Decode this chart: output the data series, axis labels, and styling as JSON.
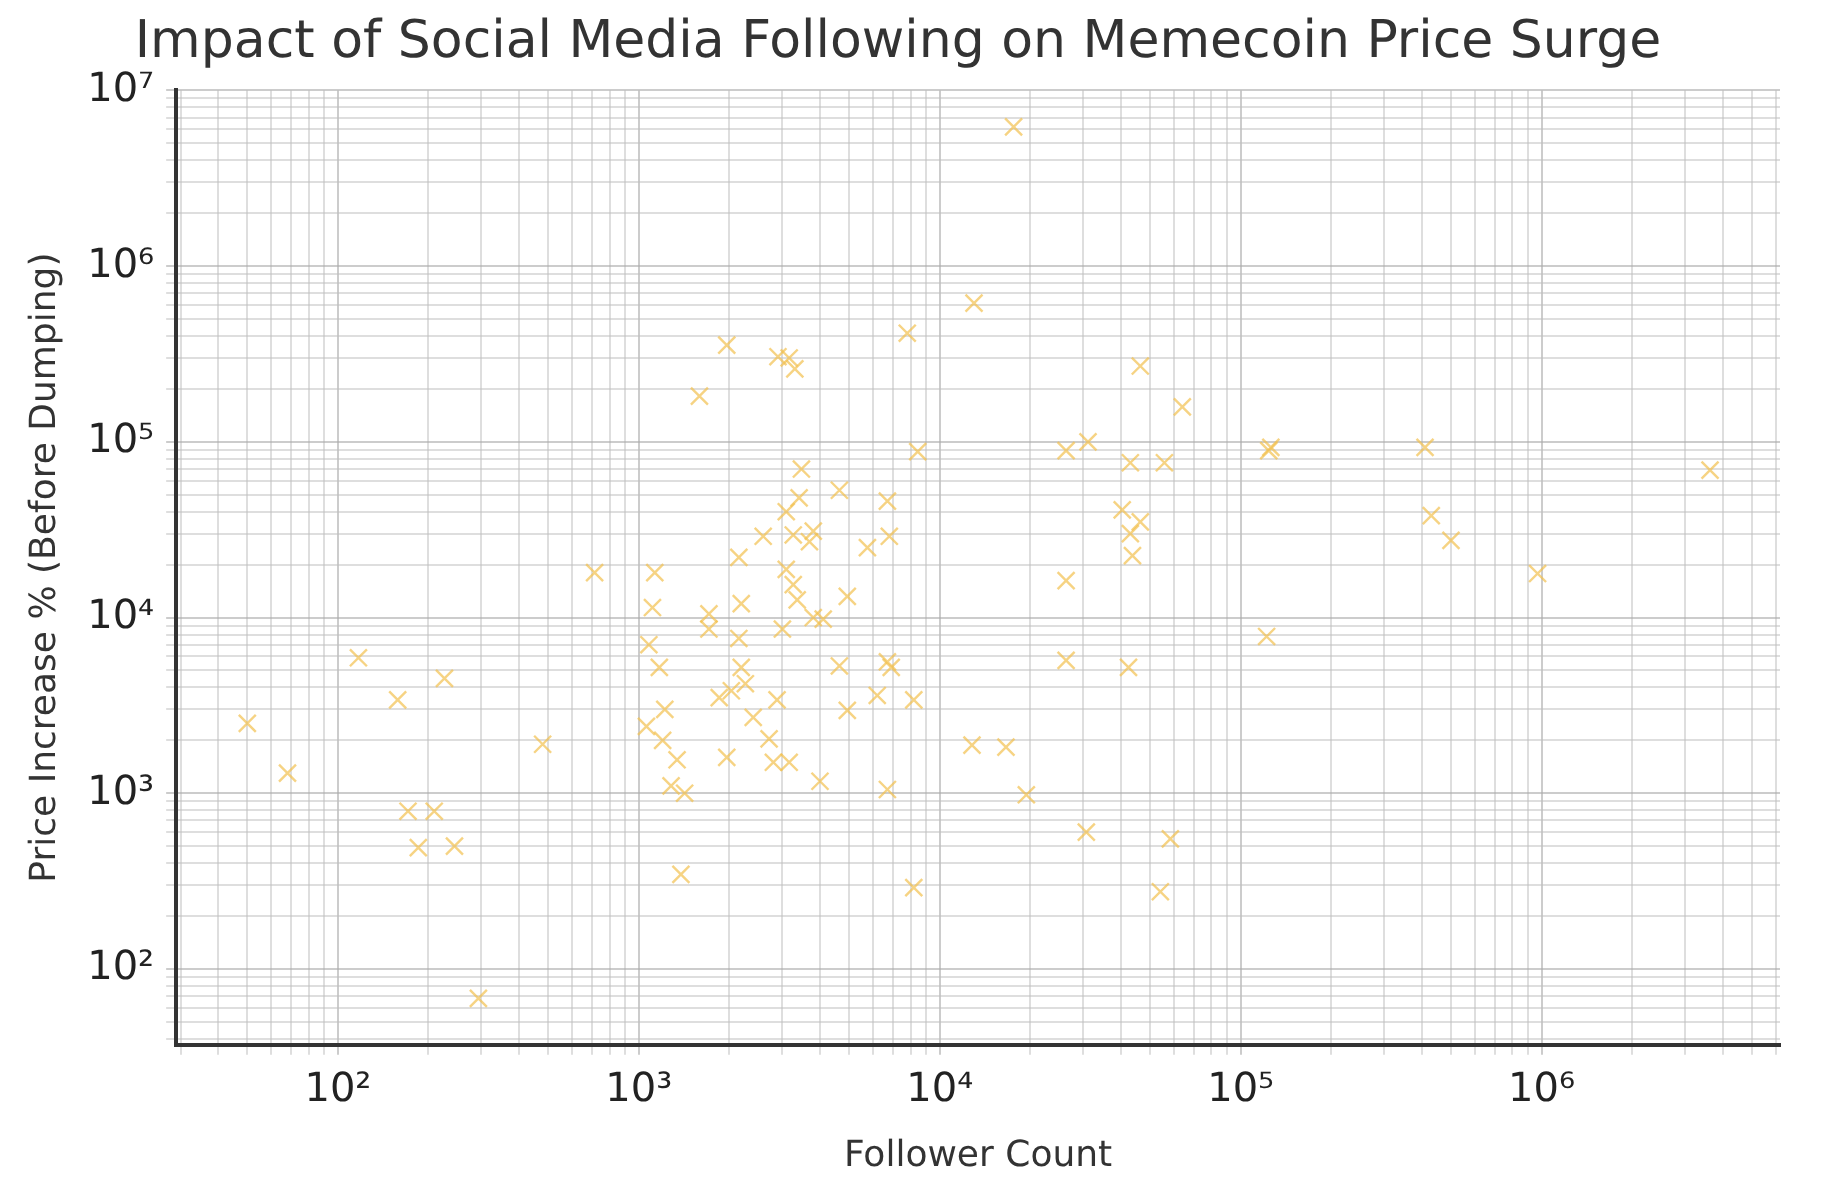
{
  "chart_data": {
    "type": "scatter",
    "title": "Impact of Social Media Following on Memecoin Price Surge",
    "xlabel": "Follower Count",
    "ylabel": "Price Increase % (Before Dumping)",
    "log": "xy",
    "grid": true,
    "marker": "cross",
    "legend": false,
    "xlim": [
      29,
      6200000
    ],
    "ylim": [
      37,
      10000000
    ],
    "xticks": [
      {
        "value": 30,
        "label": null
      },
      {
        "value": 40,
        "label": null
      },
      {
        "value": 50,
        "label": null
      },
      {
        "value": 60,
        "label": null
      },
      {
        "value": 70,
        "label": null
      },
      {
        "value": 80,
        "label": null
      },
      {
        "value": 90,
        "label": null
      },
      {
        "value": 100,
        "label": "10²"
      },
      {
        "value": 200,
        "label": null
      },
      {
        "value": 300,
        "label": null
      },
      {
        "value": 400,
        "label": null
      },
      {
        "value": 500,
        "label": null
      },
      {
        "value": 600,
        "label": null
      },
      {
        "value": 700,
        "label": null
      },
      {
        "value": 800,
        "label": null
      },
      {
        "value": 900,
        "label": null
      },
      {
        "value": 1000,
        "label": "10³"
      },
      {
        "value": 2000,
        "label": null
      },
      {
        "value": 3000,
        "label": null
      },
      {
        "value": 4000,
        "label": null
      },
      {
        "value": 5000,
        "label": null
      },
      {
        "value": 6000,
        "label": null
      },
      {
        "value": 7000,
        "label": null
      },
      {
        "value": 8000,
        "label": null
      },
      {
        "value": 9000,
        "label": null
      },
      {
        "value": 10000,
        "label": "10⁴"
      },
      {
        "value": 20000,
        "label": null
      },
      {
        "value": 30000,
        "label": null
      },
      {
        "value": 40000,
        "label": null
      },
      {
        "value": 50000,
        "label": null
      },
      {
        "value": 60000,
        "label": null
      },
      {
        "value": 70000,
        "label": null
      },
      {
        "value": 80000,
        "label": null
      },
      {
        "value": 90000,
        "label": null
      },
      {
        "value": 100000,
        "label": "10⁵"
      },
      {
        "value": 200000,
        "label": null
      },
      {
        "value": 300000,
        "label": null
      },
      {
        "value": 400000,
        "label": null
      },
      {
        "value": 500000,
        "label": null
      },
      {
        "value": 600000,
        "label": null
      },
      {
        "value": 700000,
        "label": null
      },
      {
        "value": 800000,
        "label": null
      },
      {
        "value": 900000,
        "label": null
      },
      {
        "value": 1000000,
        "label": "10⁶"
      },
      {
        "value": 2000000,
        "label": null
      },
      {
        "value": 3000000,
        "label": null
      },
      {
        "value": 4000000,
        "label": null
      },
      {
        "value": 5000000,
        "label": null
      },
      {
        "value": 6000000,
        "label": null
      }
    ],
    "yticks": [
      {
        "value": 40,
        "label": null
      },
      {
        "value": 50,
        "label": null
      },
      {
        "value": 60,
        "label": null
      },
      {
        "value": 70,
        "label": null
      },
      {
        "value": 80,
        "label": null
      },
      {
        "value": 90,
        "label": null
      },
      {
        "value": 100,
        "label": "10²"
      },
      {
        "value": 200,
        "label": null
      },
      {
        "value": 300,
        "label": null
      },
      {
        "value": 400,
        "label": null
      },
      {
        "value": 500,
        "label": null
      },
      {
        "value": 600,
        "label": null
      },
      {
        "value": 700,
        "label": null
      },
      {
        "value": 800,
        "label": null
      },
      {
        "value": 900,
        "label": null
      },
      {
        "value": 1000,
        "label": "10³"
      },
      {
        "value": 2000,
        "label": null
      },
      {
        "value": 3000,
        "label": null
      },
      {
        "value": 4000,
        "label": null
      },
      {
        "value": 5000,
        "label": null
      },
      {
        "value": 6000,
        "label": null
      },
      {
        "value": 7000,
        "label": null
      },
      {
        "value": 8000,
        "label": null
      },
      {
        "value": 9000,
        "label": null
      },
      {
        "value": 10000,
        "label": "10⁴"
      },
      {
        "value": 20000,
        "label": null
      },
      {
        "value": 30000,
        "label": null
      },
      {
        "value": 40000,
        "label": null
      },
      {
        "value": 50000,
        "label": null
      },
      {
        "value": 60000,
        "label": null
      },
      {
        "value": 70000,
        "label": null
      },
      {
        "value": 80000,
        "label": null
      },
      {
        "value": 90000,
        "label": null
      },
      {
        "value": 100000,
        "label": "10⁵"
      },
      {
        "value": 200000,
        "label": null
      },
      {
        "value": 300000,
        "label": null
      },
      {
        "value": 400000,
        "label": null
      },
      {
        "value": 500000,
        "label": null
      },
      {
        "value": 600000,
        "label": null
      },
      {
        "value": 700000,
        "label": null
      },
      {
        "value": 800000,
        "label": null
      },
      {
        "value": 900000,
        "label": null
      },
      {
        "value": 1000000,
        "label": "10⁶"
      },
      {
        "value": 2000000,
        "label": null
      },
      {
        "value": 3000000,
        "label": null
      },
      {
        "value": 4000000,
        "label": null
      },
      {
        "value": 5000000,
        "label": null
      },
      {
        "value": 6000000,
        "label": null
      },
      {
        "value": 7000000,
        "label": null
      },
      {
        "value": 8000000,
        "label": null
      },
      {
        "value": 9000000,
        "label": null
      },
      {
        "value": 10000000,
        "label": "10⁷"
      }
    ],
    "series": [
      {
        "color": "#f2c14e",
        "x": [
          50,
          68,
          117,
          158,
          226,
          171,
          209,
          185,
          244,
          293,
          479,
          713,
          1130,
          1110,
          1080,
          1170,
          1220,
          1060,
          1200,
          1340,
          1280,
          1420,
          1380,
          1710,
          1710,
          1850,
          2030,
          1960,
          2190,
          2150,
          2190,
          2260,
          2400,
          2150,
          2710,
          2800,
          2880,
          3160,
          3000,
          3090,
          3260,
          3360,
          3800,
          4100,
          4000,
          4640,
          4930,
          4930,
          6200,
          6700,
          6900,
          6700,
          8200,
          8200,
          1960,
          1590,
          2900,
          3160,
          3300,
          7800,
          3470,
          3090,
          3410,
          3260,
          3800,
          3690,
          2590,
          4640,
          5750,
          6700,
          6800,
          8450,
          17600,
          13000,
          46400,
          64000,
          26300,
          31100,
          43000,
          55800,
          124000,
          126000,
          410000,
          3630000,
          40400,
          46400,
          43000,
          43700,
          430000,
          500000,
          970000,
          26300,
          122000,
          26300,
          42400,
          12800,
          16600,
          19400,
          30700,
          58400,
          54100
        ],
        "values": [
          2500,
          1300,
          5900,
          3400,
          4500,
          790,
          790,
          490,
          500,
          68,
          1900,
          18000,
          18000,
          11400,
          7000,
          5200,
          3000,
          2400,
          2000,
          1550,
          1100,
          1000,
          345,
          8600,
          10500,
          3500,
          3830,
          1600,
          12000,
          7600,
          5200,
          4200,
          2700,
          22000,
          2040,
          1500,
          3400,
          1500,
          8600,
          18800,
          15400,
          12600,
          10000,
          9800,
          1170,
          5300,
          2960,
          13200,
          3600,
          5600,
          5200,
          1050,
          3400,
          290,
          355000,
          182000,
          305000,
          300000,
          260000,
          415000,
          70000,
          40000,
          48000,
          29500,
          31000,
          27000,
          29000,
          53000,
          25000,
          46000,
          29000,
          88000,
          6200000,
          615000,
          270000,
          158000,
          89000,
          100000,
          76000,
          76000,
          89000,
          93000,
          93000,
          69000,
          41000,
          35000,
          30000,
          22500,
          38000,
          27500,
          17800,
          16200,
          7800,
          5700,
          5200,
          1880,
          1830,
          980,
          600,
          550,
          275
        ]
      }
    ]
  }
}
